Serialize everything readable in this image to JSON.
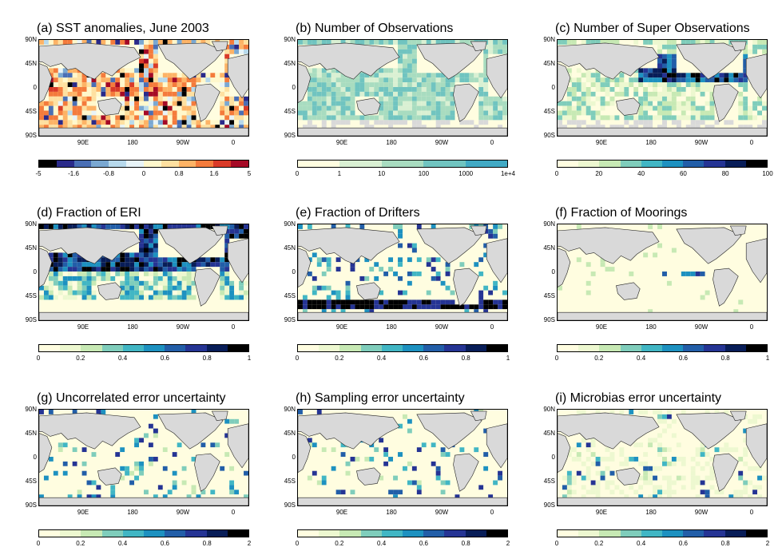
{
  "lat_labels": [
    "90N",
    "45N",
    "0",
    "45S",
    "90S"
  ],
  "lon_labels": [
    "90E",
    "180",
    "90W",
    "0"
  ],
  "panels": [
    {
      "title": "(a) SST anomalies, June 2003",
      "colors": [
        "#000000",
        "#2a2a8a",
        "#4a6fb5",
        "#7aa8d2",
        "#b7d9ec",
        "#e8f4f8",
        "#fff8cc",
        "#fee0a0",
        "#fdb366",
        "#f47b3c",
        "#d93a28",
        "#a50a26"
      ],
      "ticks": [
        "-5",
        "-1.6",
        "-0.8",
        "0",
        "0.8",
        "1.6",
        "5"
      ],
      "scheme": "anom"
    },
    {
      "title": "(b) Number of Observations",
      "colors": [
        "#fffde0",
        "#d9f0d3",
        "#a8dcc0",
        "#70c4c0",
        "#41a9c4"
      ],
      "ticks": [
        "0",
        "1",
        "10",
        "100",
        "1000",
        "1e+4"
      ],
      "scheme": "obs"
    },
    {
      "title": "(c) Number of Super Observations",
      "colors": [
        "#fffde0",
        "#edf8d0",
        "#c7e9b4",
        "#7fcdbb",
        "#41b6c4",
        "#1d91c0",
        "#225ea8",
        "#253494",
        "#081d58",
        "#000000"
      ],
      "ticks": [
        "0",
        "20",
        "40",
        "60",
        "80",
        "100"
      ],
      "scheme": "super"
    },
    {
      "title": "(d) Fraction of ERI",
      "colors": [
        "#fffde0",
        "#edf8d0",
        "#c7e9b4",
        "#7fcdbb",
        "#41b6c4",
        "#1d91c0",
        "#225ea8",
        "#253494",
        "#081d58",
        "#000000"
      ],
      "ticks": [
        "0",
        "0.2",
        "0.4",
        "0.6",
        "0.8",
        "1"
      ],
      "scheme": "eri"
    },
    {
      "title": "(e) Fraction of Drifters",
      "colors": [
        "#fffde0",
        "#edf8d0",
        "#c7e9b4",
        "#7fcdbb",
        "#41b6c4",
        "#1d91c0",
        "#225ea8",
        "#253494",
        "#081d58",
        "#000000"
      ],
      "ticks": [
        "0",
        "0.2",
        "0.4",
        "0.6",
        "0.8",
        "1"
      ],
      "scheme": "drift"
    },
    {
      "title": "(f) Fraction of Moorings",
      "colors": [
        "#fffde0",
        "#edf8d0",
        "#c7e9b4",
        "#7fcdbb",
        "#41b6c4",
        "#1d91c0",
        "#225ea8",
        "#253494",
        "#081d58",
        "#000000"
      ],
      "ticks": [
        "0",
        "0.2",
        "0.4",
        "0.6",
        "0.8",
        "1"
      ],
      "scheme": "moor"
    },
    {
      "title": "(g) Uncorrelated error uncertainty",
      "colors": [
        "#fffde0",
        "#edf8d0",
        "#c7e9b4",
        "#7fcdbb",
        "#41b6c4",
        "#1d91c0",
        "#225ea8",
        "#253494",
        "#081d58",
        "#000000"
      ],
      "ticks": [
        "0",
        "0.2",
        "0.4",
        "0.6",
        "0.8",
        "2"
      ],
      "scheme": "unc"
    },
    {
      "title": "(h) Sampling error uncertainty",
      "colors": [
        "#fffde0",
        "#edf8d0",
        "#c7e9b4",
        "#7fcdbb",
        "#41b6c4",
        "#1d91c0",
        "#225ea8",
        "#253494",
        "#081d58",
        "#000000"
      ],
      "ticks": [
        "0",
        "0.2",
        "0.4",
        "0.6",
        "0.8",
        "2"
      ],
      "scheme": "unc"
    },
    {
      "title": "(i) Microbias error uncertainty",
      "colors": [
        "#fffde0",
        "#edf8d0",
        "#c7e9b4",
        "#7fcdbb",
        "#41b6c4",
        "#1d91c0",
        "#225ea8",
        "#253494",
        "#081d58",
        "#000000"
      ],
      "ticks": [
        "0",
        "0.2",
        "0.4",
        "0.6",
        "0.8",
        "2"
      ],
      "scheme": "micro"
    }
  ]
}
